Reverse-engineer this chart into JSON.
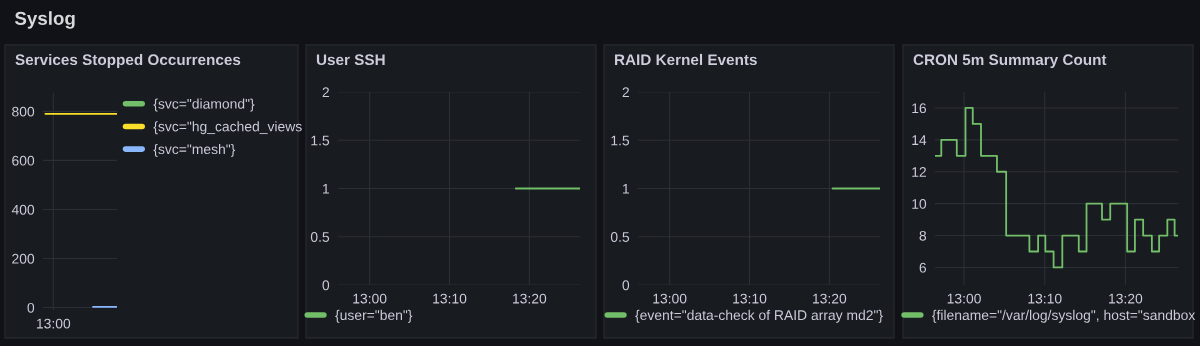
{
  "chart_data": [
    {
      "type": "line",
      "title": "Services Stopped Occurrences",
      "annotations": [
        "Syslog"
      ],
      "categories": [
        null,
        "13:00",
        null,
        null,
        null,
        null,
        null,
        null,
        null,
        null
      ],
      "ylim": [
        -10,
        875
      ],
      "yticks": [
        0,
        200,
        400,
        600,
        800
      ],
      "grid": true,
      "legend": "right",
      "series": [
        {
          "name": "{svc=\"diamond\"}",
          "color": "#73bf69",
          "values": [
            null,
            null,
            null,
            null,
            null,
            null,
            null,
            null,
            null,
            null
          ]
        },
        {
          "name": "{svc=\"hg_cached_views",
          "color": "#fade2a",
          "values": [
            790,
            790,
            790,
            790,
            790,
            790,
            790,
            790,
            790,
            790
          ]
        },
        {
          "name": "{svc=\"mesh\"}",
          "color": "#8ab8ff",
          "values": [
            null,
            null,
            null,
            null,
            null,
            null,
            3,
            3,
            3,
            3
          ]
        }
      ]
    },
    {
      "type": "line",
      "title": "User SSH",
      "xlim": [
        12.934,
        13.439
      ],
      "xticks": [
        {
          "value": 13.0,
          "label": "13:00"
        },
        {
          "value": 13.1667,
          "label": "13:10"
        },
        {
          "value": 13.3333,
          "label": "13:20"
        }
      ],
      "ylim": [
        0,
        2
      ],
      "yticks": [
        0,
        0.5,
        1,
        1.5,
        2
      ],
      "grid": true,
      "legend": "bottom",
      "series": [
        {
          "name": "{user=\"ben\"}",
          "color": "#73bf69",
          "x": [
            13.305,
            13.439
          ],
          "values": [
            1,
            1
          ]
        }
      ]
    },
    {
      "type": "line",
      "title": "RAID Kernel Events",
      "xlim": [
        12.934,
        13.439
      ],
      "xticks": [
        {
          "value": 13.0,
          "label": "13:00"
        },
        {
          "value": 13.1667,
          "label": "13:10"
        },
        {
          "value": 13.3333,
          "label": "13:20"
        }
      ],
      "ylim": [
        0,
        2
      ],
      "yticks": [
        0,
        0.5,
        1,
        1.5,
        2
      ],
      "grid": true,
      "legend": "bottom",
      "series": [
        {
          "name": "{event=\"data-check of RAID array md2\"}",
          "color": "#73bf69",
          "x": [
            13.34,
            13.439
          ],
          "values": [
            1,
            1
          ]
        }
      ]
    },
    {
      "type": "step",
      "title": "CRON 5m Summary Count",
      "xlim": [
        12.94,
        13.442
      ],
      "xticks": [
        {
          "value": 13.0,
          "label": "13:00"
        },
        {
          "value": 13.1667,
          "label": "13:10"
        },
        {
          "value": 13.3333,
          "label": "13:20"
        }
      ],
      "ylim": [
        4.9,
        17
      ],
      "yticks": [
        6,
        8,
        10,
        12,
        14,
        16
      ],
      "grid": true,
      "legend": "bottom",
      "series": [
        {
          "name": "{filename=\"/var/log/syslog\", host=\"sandbox",
          "color": "#73bf69",
          "x": [
            12.94,
            12.953,
            12.985,
            13.003,
            13.018,
            13.035,
            13.068,
            13.087,
            13.135,
            13.153,
            13.168,
            13.185,
            13.203,
            13.237,
            13.253,
            13.285,
            13.302,
            13.337,
            13.353,
            13.37,
            13.388,
            13.403,
            13.42,
            13.435,
            13.442
          ],
          "values": [
            13,
            14,
            13,
            16,
            15,
            13,
            12,
            8,
            7,
            8,
            7,
            6,
            8,
            7,
            10,
            9,
            10,
            7,
            9,
            8,
            7,
            8,
            9,
            8,
            8
          ]
        }
      ]
    }
  ]
}
